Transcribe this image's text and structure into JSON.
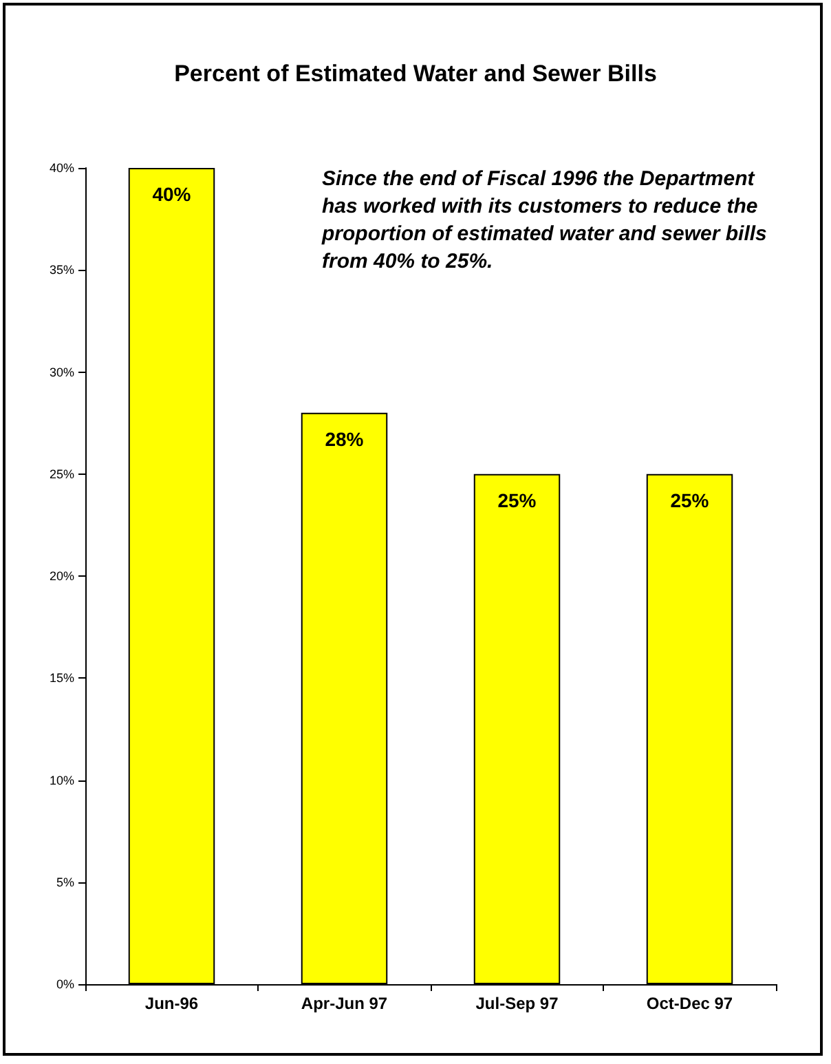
{
  "chart_data": {
    "type": "bar",
    "title": "Percent of Estimated Water and Sewer Bills",
    "annotations": [
      "Since the end of Fiscal 1996 the Department has worked with its customers to reduce the proportion of estimated water and sewer bills from 40% to 25%."
    ],
    "categories": [
      "Jun-96",
      "Apr-Jun 97",
      "Jul-Sep 97",
      "Oct-Dec 97"
    ],
    "values": [
      40,
      28,
      25,
      25
    ],
    "value_labels": [
      "40%",
      "28%",
      "25%",
      "25%"
    ],
    "color": "#ffff00",
    "ylim": [
      0,
      40
    ],
    "yticks": [
      {
        "value": 0,
        "label": "0%"
      },
      {
        "value": 5,
        "label": "5%"
      },
      {
        "value": 10,
        "label": "10%"
      },
      {
        "value": 15,
        "label": "15%"
      },
      {
        "value": 20,
        "label": "20%"
      },
      {
        "value": 25,
        "label": "25%"
      },
      {
        "value": 30,
        "label": "30%"
      },
      {
        "value": 35,
        "label": "35%"
      },
      {
        "value": 40,
        "label": "40%"
      }
    ],
    "grid": false
  }
}
